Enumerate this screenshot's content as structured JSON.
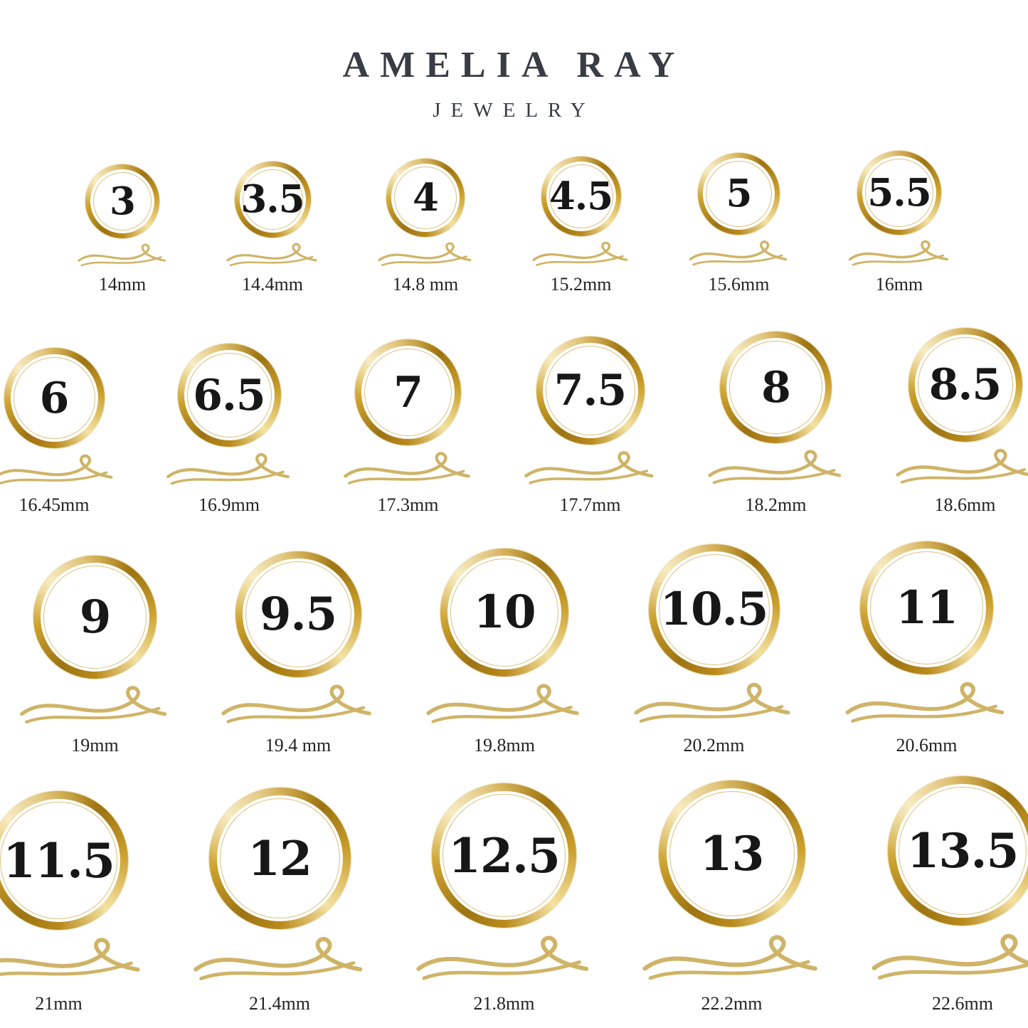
{
  "brand": {
    "name": "AMELIA RAY",
    "subtitle": "JEWELRY"
  },
  "colors": {
    "gold_dark": "#9d7413",
    "gold": "#cba02c",
    "gold_highlight": "#f4e2a2",
    "flourish_gold": "#cfb468",
    "number_text": "#171717",
    "label_text": "#232323",
    "brand_text": "#383d44",
    "background": "#ffffff"
  },
  "rows": [
    {
      "rings": [
        {
          "size": "3",
          "diameter": "14mm"
        },
        {
          "size": "3.5",
          "diameter": "14.4mm"
        },
        {
          "size": "4",
          "diameter": "14.8 mm"
        },
        {
          "size": "4.5",
          "diameter": "15.2mm"
        },
        {
          "size": "5",
          "diameter": "15.6mm"
        },
        {
          "size": "5.5",
          "diameter": "16mm"
        }
      ]
    },
    {
      "rings": [
        {
          "size": "6",
          "diameter": "16.45mm"
        },
        {
          "size": "6.5",
          "diameter": "16.9mm"
        },
        {
          "size": "7",
          "diameter": "17.3mm"
        },
        {
          "size": "7.5",
          "diameter": "17.7mm"
        },
        {
          "size": "8",
          "diameter": "18.2mm"
        },
        {
          "size": "8.5",
          "diameter": "18.6mm"
        }
      ]
    },
    {
      "rings": [
        {
          "size": "9",
          "diameter": "19mm"
        },
        {
          "size": "9.5",
          "diameter": "19.4 mm"
        },
        {
          "size": "10",
          "diameter": "19.8mm"
        },
        {
          "size": "10.5",
          "diameter": "20.2mm"
        },
        {
          "size": "11",
          "diameter": "20.6mm"
        }
      ]
    },
    {
      "rings": [
        {
          "size": "11.5",
          "diameter": "21mm"
        },
        {
          "size": "12",
          "diameter": "21.4mm"
        },
        {
          "size": "12.5",
          "diameter": "21.8mm"
        },
        {
          "size": "13",
          "diameter": "22.2mm"
        },
        {
          "size": "13.5",
          "diameter": "22.6mm"
        }
      ]
    }
  ]
}
